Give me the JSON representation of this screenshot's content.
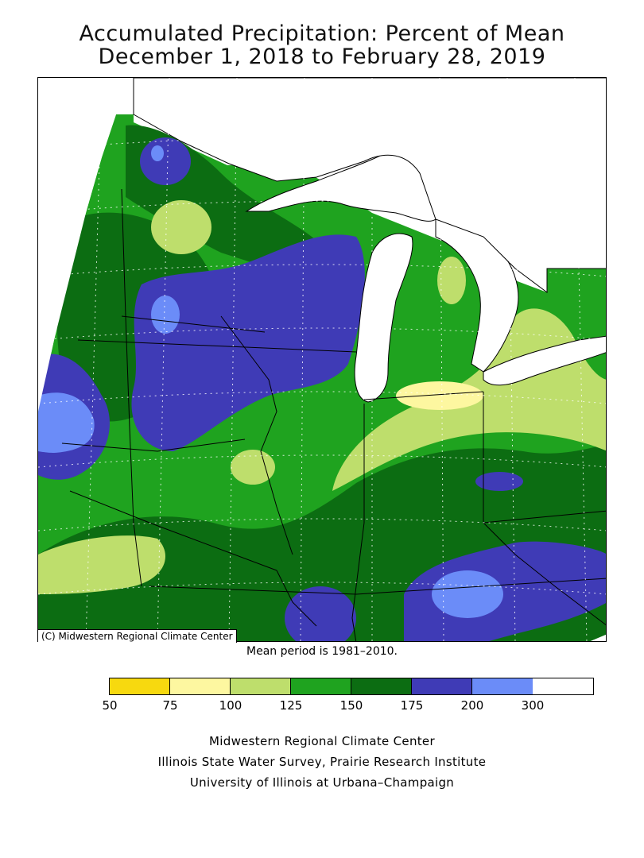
{
  "title": {
    "line1": "Accumulated Precipitation: Percent of Mean",
    "line2": "December 1, 2018 to February 28, 2019"
  },
  "map": {
    "copyright": "(C) Midwestern Regional Climate Center",
    "mean_period": "Mean period is 1981–2010."
  },
  "legend": {
    "colors": [
      "#f7d90f",
      "#fdf7a0",
      "#bede6c",
      "#1fa31f",
      "#0c6d12",
      "#3f3bb6",
      "#6b8cf8"
    ],
    "tick_labels": [
      "50",
      "75",
      "100",
      "125",
      "150",
      "175",
      "200",
      "300"
    ]
  },
  "credits": {
    "line1": "Midwestern Regional Climate Center",
    "line2": "Illinois State Water Survey, Prairie Research Institute",
    "line3": "University of Illinois at Urbana–Champaign"
  }
}
